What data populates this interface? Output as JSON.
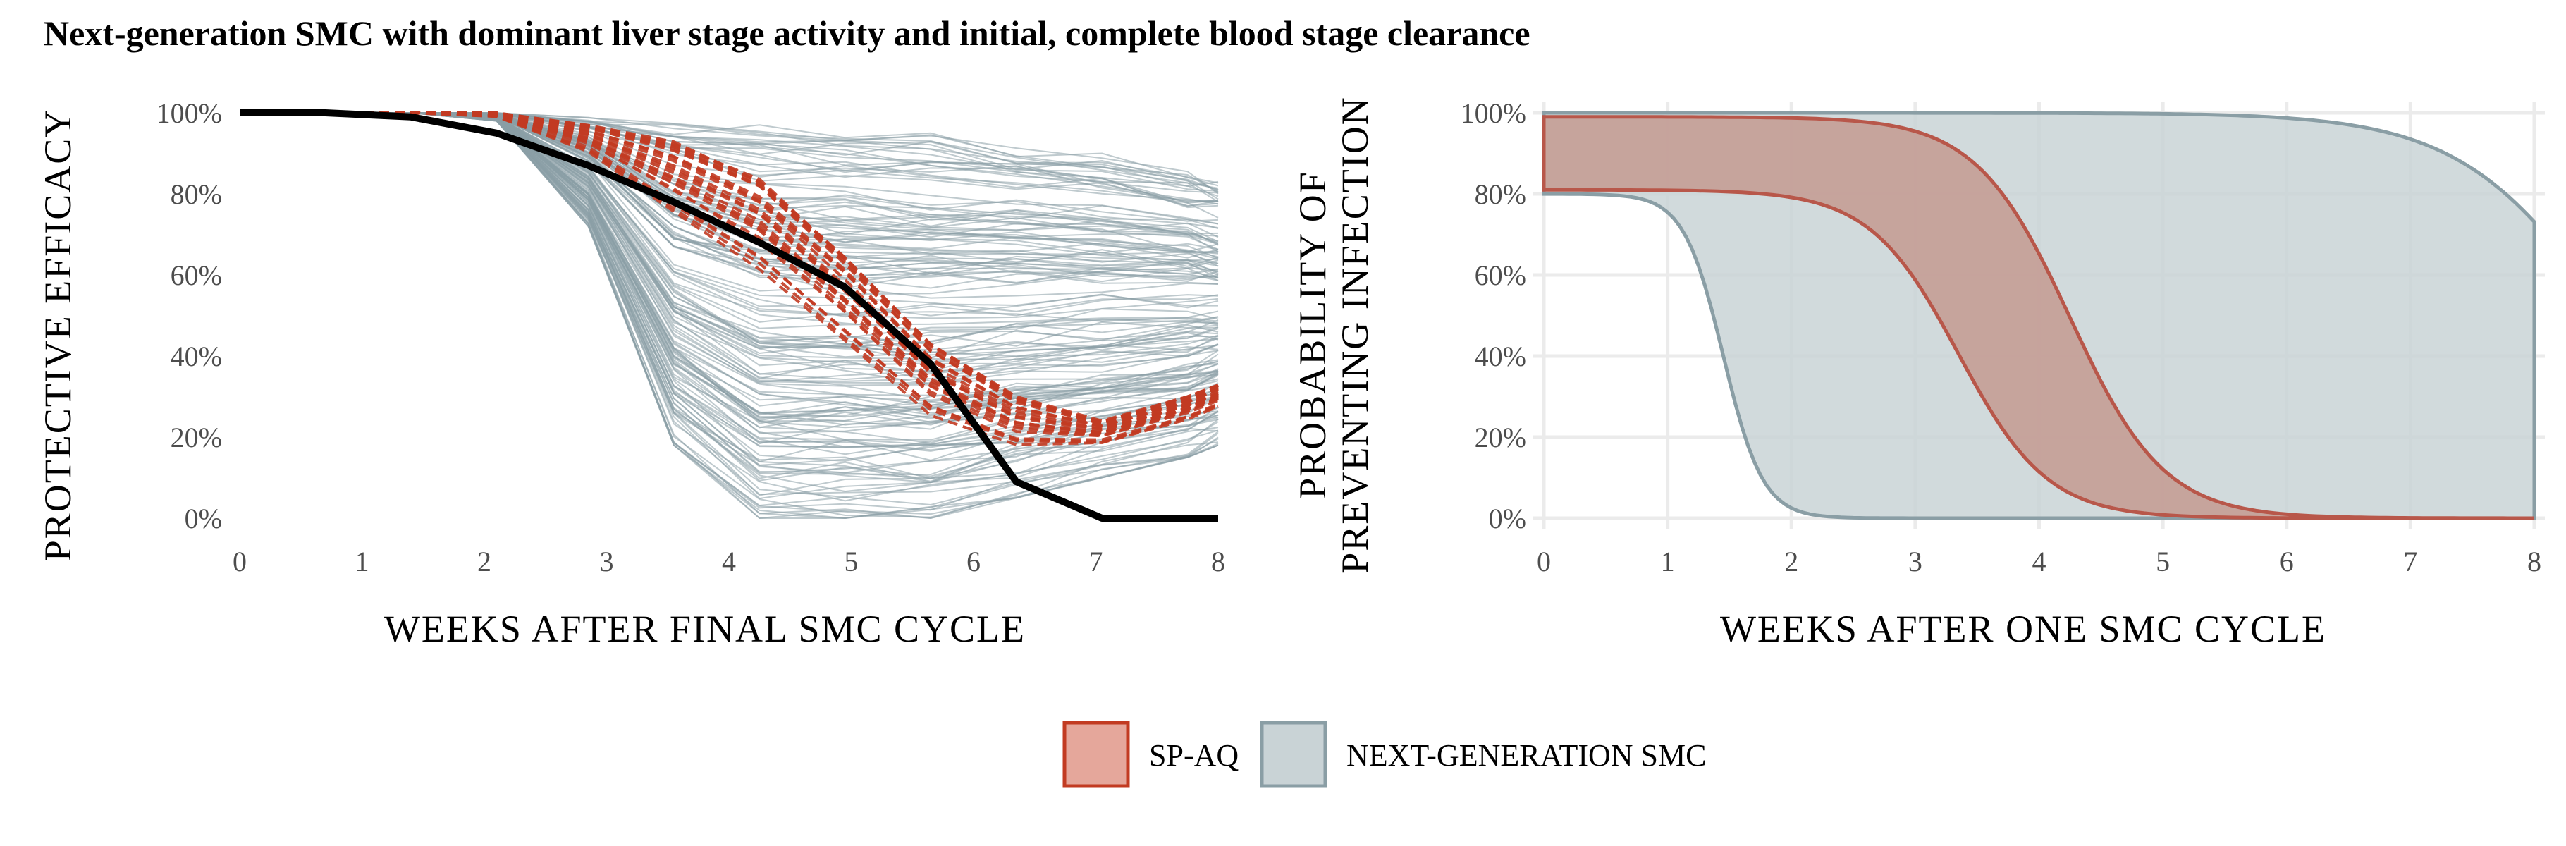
{
  "title": "Next-generation SMC with dominant liver stage activity and initial, complete blood stage clearance",
  "colors": {
    "spaq": "#c23b22",
    "spaq_fill": "#e5a79b",
    "nextgen": "#8a9ea5",
    "nextgen_fill": "#c9d3d6",
    "spaq_line": "#b8574a",
    "grid": "#ebebeb",
    "black_line": "#000000"
  },
  "legend": {
    "items": [
      {
        "label": "SP-AQ",
        "color": "#e5a79b",
        "stroke": "#c23b22"
      },
      {
        "label": "NEXT-GENERATION SMC",
        "color": "#c9d3d6",
        "stroke": "#8a9ea5"
      }
    ]
  },
  "chart_data": [
    {
      "type": "line",
      "xlabel": "WEEKS AFTER FINAL SMC CYCLE",
      "ylabel": "PROTECTIVE EFFICACY",
      "xlim": [
        0,
        8
      ],
      "ylim": [
        0,
        1
      ],
      "x_ticks": [
        "0",
        "1",
        "2",
        "3",
        "4",
        "5",
        "6",
        "7",
        "8"
      ],
      "y_ticks": [
        "0%",
        "20%",
        "40%",
        "60%",
        "80%",
        "100%"
      ],
      "grid": false,
      "series": [
        {
          "role": "mean",
          "style": "solid-black",
          "x": [
            0,
            0.7,
            1.4,
            2.1,
            2.85,
            3.55,
            4.25,
            4.95,
            5.65,
            6.35,
            7.05,
            7.75,
            8
          ],
          "y": [
            1.0,
            1.0,
            0.99,
            0.95,
            0.87,
            0.78,
            0.68,
            0.57,
            0.38,
            0.09,
            0.0,
            0.0,
            0.0
          ]
        },
        {
          "role": "spaq-samples",
          "style": "dashed",
          "x": [
            0,
            0.7,
            1.4,
            2.1,
            2.85,
            3.55,
            4.25,
            4.95,
            5.65,
            6.35,
            7.05,
            7.75,
            8
          ],
          "y_low": [
            1.0,
            1.0,
            1.0,
            0.99,
            0.9,
            0.74,
            0.6,
            0.42,
            0.24,
            0.17,
            0.18,
            0.24,
            0.27
          ],
          "y_high": [
            1.0,
            1.0,
            1.0,
            1.0,
            0.97,
            0.93,
            0.84,
            0.65,
            0.43,
            0.3,
            0.24,
            0.3,
            0.33
          ]
        },
        {
          "role": "nextgen-samples",
          "style": "thin",
          "x": [
            0,
            0.7,
            1.4,
            2.1,
            2.85,
            3.55,
            4.25,
            4.95,
            5.65,
            6.35,
            7.05,
            7.75,
            8
          ],
          "y_low": [
            1.0,
            1.0,
            1.0,
            0.98,
            0.72,
            0.18,
            0.0,
            0.0,
            0.0,
            0.05,
            0.1,
            0.15,
            0.18
          ],
          "y_high": [
            1.0,
            1.0,
            1.0,
            1.0,
            0.99,
            0.98,
            0.97,
            0.96,
            0.95,
            0.93,
            0.9,
            0.86,
            0.84
          ]
        }
      ]
    },
    {
      "type": "area",
      "xlabel": "WEEKS AFTER ONE SMC CYCLE",
      "ylabel": [
        "PROBABILITY OF",
        "PREVENTING INFECTION"
      ],
      "xlim": [
        0,
        8
      ],
      "ylim": [
        0,
        1
      ],
      "x_ticks": [
        "0",
        "1",
        "2",
        "3",
        "4",
        "5",
        "6",
        "7",
        "8"
      ],
      "y_ticks": [
        "0%",
        "20%",
        "40%",
        "60%",
        "80%",
        "100%"
      ],
      "grid": true,
      "series": [
        {
          "name": "NEXT-GENERATION SMC",
          "upper": {
            "top": 1.0,
            "mid": 8.6,
            "slope": 0.6
          },
          "lower": {
            "top": 0.8,
            "mid": 1.45,
            "slope": 0.16
          }
        },
        {
          "name": "SP-AQ",
          "upper": {
            "top": 0.99,
            "mid": 4.25,
            "slope": 0.38
          },
          "lower": {
            "top": 0.81,
            "mid": 3.35,
            "slope": 0.36
          }
        }
      ]
    }
  ]
}
